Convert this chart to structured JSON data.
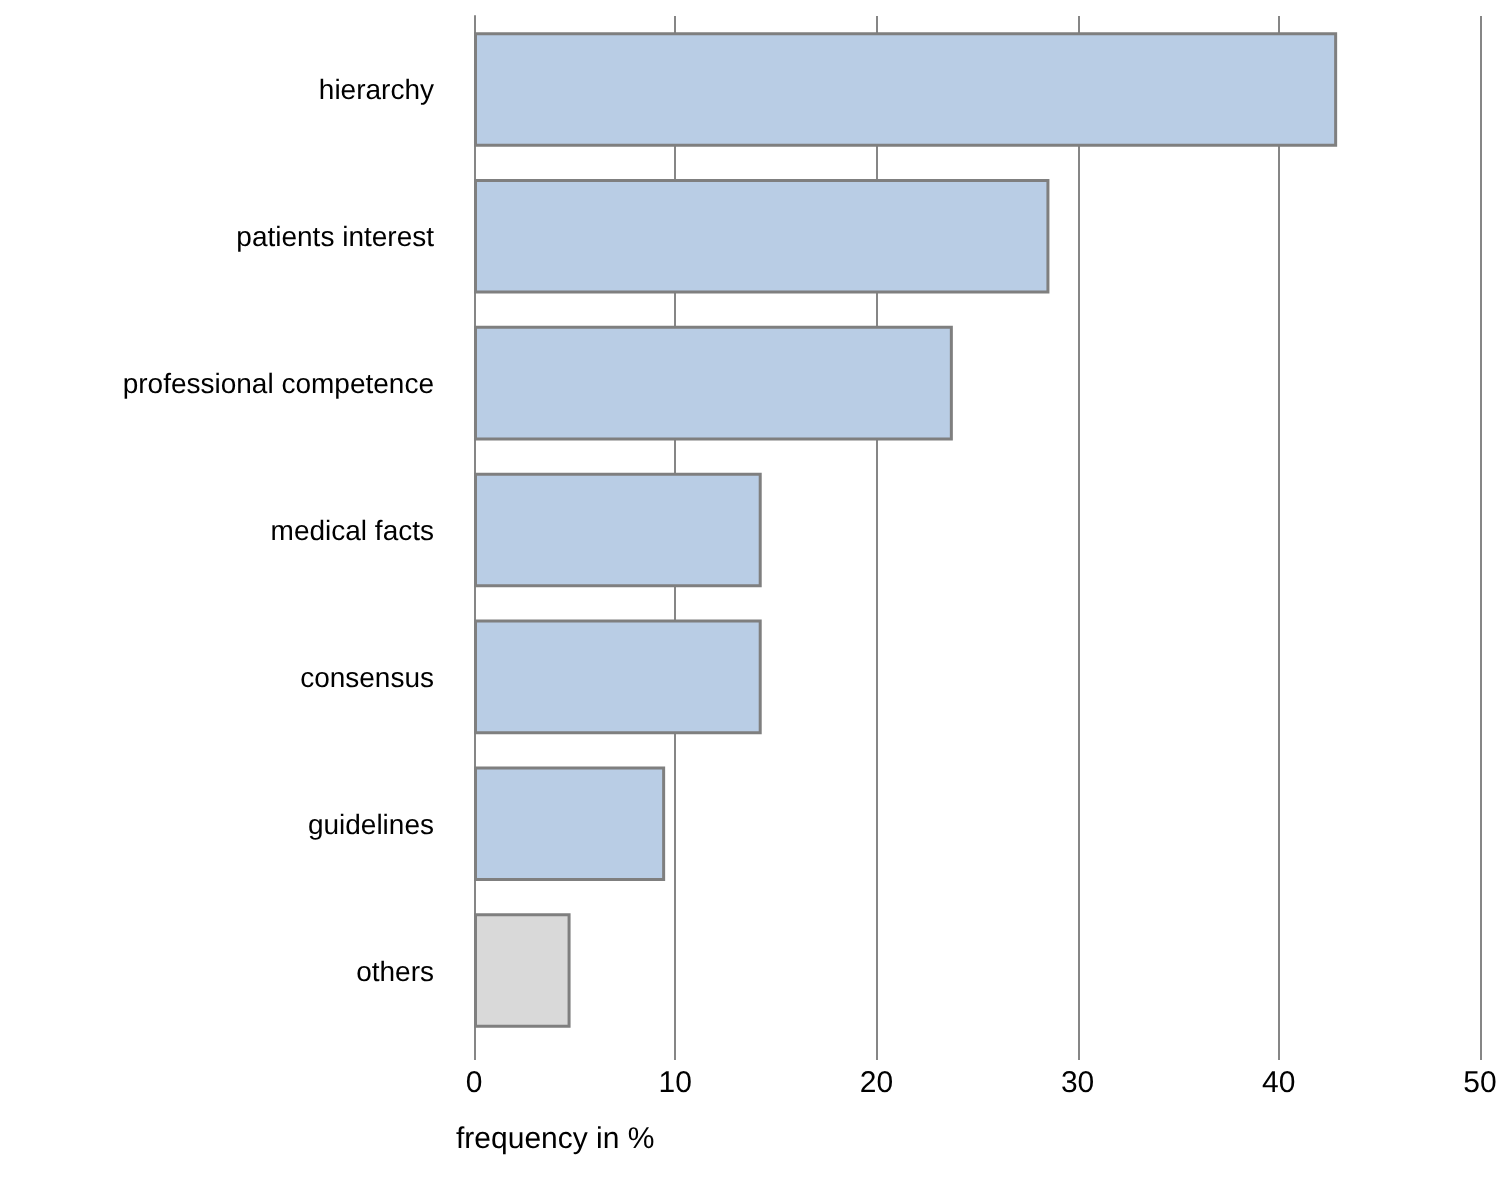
{
  "chart_data": {
    "type": "bar",
    "orientation": "horizontal",
    "xlabel": "frequency in %",
    "categories": [
      "hierarchy",
      "patients interest",
      "professional competence",
      "medical facts",
      "consensus",
      "guidelines",
      "others"
    ],
    "values": [
      42.9,
      28.6,
      23.8,
      14.3,
      14.3,
      9.5,
      4.8
    ],
    "colors": [
      "#b9cde5",
      "#b9cde5",
      "#b9cde5",
      "#b9cde5",
      "#b9cde5",
      "#b9cde5",
      "#d9d9d9"
    ],
    "xlim": [
      0,
      50
    ],
    "xticks": [
      0,
      10,
      20,
      30,
      40,
      50
    ],
    "grid": "x"
  }
}
